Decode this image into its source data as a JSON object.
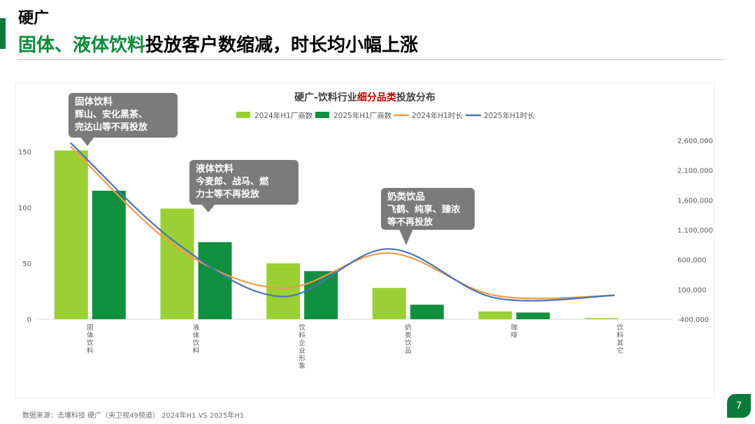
{
  "header": {
    "title": "硬广",
    "headline_highlight": "固体、液体饮料",
    "headline_rest": "投放客户数缩减，时长均小幅上涨"
  },
  "colors": {
    "accent_green": "#0a7a3a",
    "bar_2024": "#9bd034",
    "bar_2025": "#119040",
    "line_2024": "#f29a4a",
    "line_2025": "#4a72b8",
    "callout_bg": "#7b7b7b",
    "title_highlight": "#c00000"
  },
  "chart_data": {
    "type": "bar",
    "title_prefix": "硬广-饮料行业",
    "title_highlight": "细分品类",
    "title_suffix": "投放分布",
    "categories": [
      "固体饮料",
      "液体饮料",
      "饮料企业形象",
      "奶类饮品",
      "咖啡",
      "饮料其它"
    ],
    "series": [
      {
        "name": "2024年H1厂商数",
        "kind": "bar",
        "axis": "left",
        "values": [
          151,
          99,
          50,
          28,
          7,
          1
        ]
      },
      {
        "name": "2025年H1厂商数",
        "kind": "bar",
        "axis": "left",
        "values": [
          115,
          69,
          43,
          13,
          6,
          0
        ]
      },
      {
        "name": "2024年H1时长",
        "kind": "line",
        "axis": "right",
        "values": [
          2500000,
          810000,
          120000,
          710000,
          0,
          0
        ]
      },
      {
        "name": "2025年H1时长",
        "kind": "line",
        "axis": "right",
        "values": [
          2560000,
          880000,
          -20000,
          780000,
          -40000,
          0
        ]
      }
    ],
    "y_left": {
      "min": 0,
      "max": 150,
      "ticks": [
        "0",
        "50",
        "100",
        "150"
      ]
    },
    "y_right": {
      "min": -400000,
      "max": 2600000,
      "ticks": [
        "-400,000",
        "100,000",
        "600,000",
        "1,100,000",
        "1,600,000",
        "2,100,000",
        "2,600,000"
      ]
    },
    "grid": false,
    "legend_position": "top",
    "annotations": [
      {
        "lines": [
          "固体饮料",
          "辉山、安化黑茶、",
          "完达山等不再投放"
        ],
        "category_index": 0
      },
      {
        "lines": [
          "液体饮料",
          "今麦郎、战马、燃",
          "力士等不再投放"
        ],
        "category_index": 1
      },
      {
        "lines": [
          "奶类饮品",
          "飞鹤、纯享、臻浓",
          "等不再投放"
        ],
        "category_index": 3
      }
    ]
  },
  "footer": {
    "source": "数据来源：击壤科技 硬广（央卫视49频道） 2024年H1 VS 2025年H1",
    "page_number": "7"
  }
}
